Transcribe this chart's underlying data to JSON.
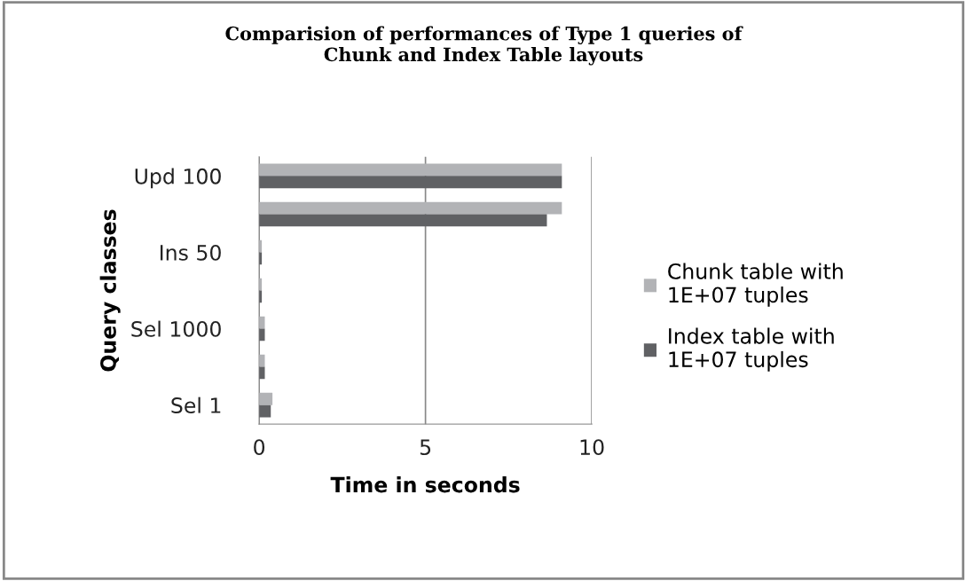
{
  "chart_data": {
    "type": "bar",
    "orientation": "horizontal",
    "title": "Comparision of performances of Type 1 queries of\nChunk and Index Table layouts",
    "xlabel": "Time in seconds",
    "ylabel": "Query classes",
    "categories": [
      "Upd 100",
      null,
      "Ins 50",
      null,
      "Sel 1000",
      null,
      "Sel 1"
    ],
    "series": [
      {
        "name": "Chunk table with\n1E+07 tuples",
        "color": "#b2b3b6",
        "values": [
          9.1,
          9.1,
          0.08,
          0.08,
          0.17,
          0.17,
          0.4
        ]
      },
      {
        "name": "Index table with\n1E+07 tuples",
        "color": "#606164",
        "values": [
          9.1,
          8.65,
          0.08,
          0.08,
          0.17,
          0.17,
          0.35
        ]
      }
    ],
    "xlim": [
      0,
      10
    ],
    "xticks": [
      0,
      5,
      10
    ],
    "grid": "x",
    "legend": "right"
  }
}
